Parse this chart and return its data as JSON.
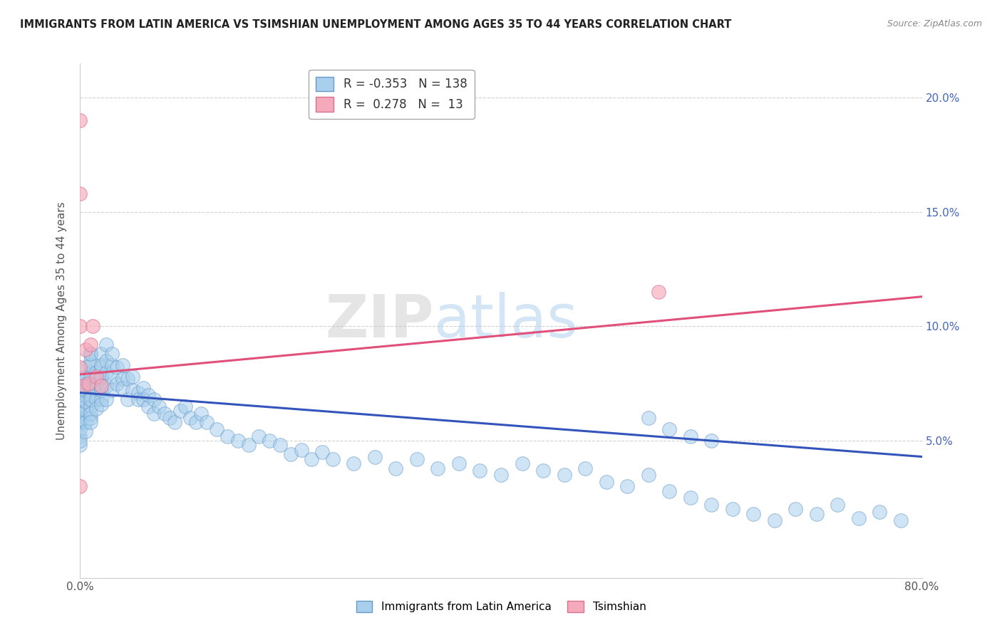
{
  "title": "IMMIGRANTS FROM LATIN AMERICA VS TSIMSHIAN UNEMPLOYMENT AMONG AGES 35 TO 44 YEARS CORRELATION CHART",
  "source": "Source: ZipAtlas.com",
  "ylabel": "Unemployment Among Ages 35 to 44 years",
  "xmin": 0.0,
  "xmax": 0.8,
  "ymin": -0.01,
  "ymax": 0.215,
  "yticks": [
    0.05,
    0.1,
    0.15,
    0.2
  ],
  "R_blue": -0.353,
  "N_blue": 138,
  "R_pink": 0.278,
  "N_pink": 13,
  "blue_color": "#A8CFEB",
  "blue_edge": "#6699CC",
  "pink_color": "#F5AABB",
  "pink_edge": "#D97090",
  "blue_line_color": "#3355BB",
  "pink_line_color": "#E0507A",
  "background_color": "#FFFFFF",
  "grid_color": "#CCCCCC",
  "legend_label_blue": "Immigrants from Latin America",
  "legend_label_pink": "Tsimshian",
  "blue_trend_x0": 0.0,
  "blue_trend_y0": 0.071,
  "blue_trend_x1": 0.8,
  "blue_trend_y1": 0.043,
  "pink_trend_x0": 0.0,
  "pink_trend_y0": 0.079,
  "pink_trend_x1": 0.8,
  "pink_trend_y1": 0.113,
  "blue_scatter_x": [
    0.0,
    0.0,
    0.0,
    0.0,
    0.0,
    0.0,
    0.0,
    0.0,
    0.0,
    0.0,
    0.0,
    0.0,
    0.0,
    0.0,
    0.0,
    0.0,
    0.0,
    0.0,
    0.0,
    0.0,
    0.005,
    0.005,
    0.005,
    0.005,
    0.005,
    0.005,
    0.005,
    0.005,
    0.005,
    0.005,
    0.01,
    0.01,
    0.01,
    0.01,
    0.01,
    0.01,
    0.01,
    0.01,
    0.01,
    0.01,
    0.01,
    0.01,
    0.01,
    0.01,
    0.01,
    0.015,
    0.015,
    0.015,
    0.015,
    0.015,
    0.02,
    0.02,
    0.02,
    0.02,
    0.02,
    0.02,
    0.02,
    0.02,
    0.02,
    0.025,
    0.025,
    0.025,
    0.025,
    0.025,
    0.03,
    0.03,
    0.03,
    0.03,
    0.035,
    0.035,
    0.04,
    0.04,
    0.04,
    0.045,
    0.045,
    0.05,
    0.05,
    0.055,
    0.055,
    0.06,
    0.06,
    0.065,
    0.065,
    0.07,
    0.07,
    0.075,
    0.08,
    0.085,
    0.09,
    0.095,
    0.1,
    0.105,
    0.11,
    0.115,
    0.12,
    0.13,
    0.14,
    0.15,
    0.16,
    0.17,
    0.18,
    0.19,
    0.2,
    0.21,
    0.22,
    0.23,
    0.24,
    0.26,
    0.28,
    0.3,
    0.32,
    0.34,
    0.36,
    0.38,
    0.4,
    0.42,
    0.44,
    0.46,
    0.48,
    0.5,
    0.52,
    0.54,
    0.56,
    0.58,
    0.6,
    0.62,
    0.64,
    0.66,
    0.68,
    0.7,
    0.72,
    0.74,
    0.76,
    0.78,
    0.54,
    0.56,
    0.58,
    0.6
  ],
  "blue_scatter_y": [
    0.065,
    0.068,
    0.072,
    0.058,
    0.052,
    0.048,
    0.062,
    0.07,
    0.066,
    0.06,
    0.055,
    0.058,
    0.062,
    0.066,
    0.07,
    0.05,
    0.075,
    0.064,
    0.059,
    0.068,
    0.063,
    0.07,
    0.075,
    0.078,
    0.082,
    0.058,
    0.054,
    0.067,
    0.072,
    0.077,
    0.072,
    0.076,
    0.08,
    0.085,
    0.088,
    0.065,
    0.06,
    0.07,
    0.074,
    0.068,
    0.078,
    0.083,
    0.088,
    0.062,
    0.058,
    0.075,
    0.08,
    0.068,
    0.064,
    0.073,
    0.078,
    0.082,
    0.088,
    0.073,
    0.068,
    0.078,
    0.083,
    0.072,
    0.066,
    0.08,
    0.085,
    0.092,
    0.074,
    0.068,
    0.083,
    0.088,
    0.078,
    0.072,
    0.082,
    0.075,
    0.077,
    0.083,
    0.073,
    0.068,
    0.077,
    0.072,
    0.078,
    0.071,
    0.068,
    0.073,
    0.068,
    0.065,
    0.07,
    0.062,
    0.068,
    0.065,
    0.062,
    0.06,
    0.058,
    0.063,
    0.065,
    0.06,
    0.058,
    0.062,
    0.058,
    0.055,
    0.052,
    0.05,
    0.048,
    0.052,
    0.05,
    0.048,
    0.044,
    0.046,
    0.042,
    0.045,
    0.042,
    0.04,
    0.043,
    0.038,
    0.042,
    0.038,
    0.04,
    0.037,
    0.035,
    0.04,
    0.037,
    0.035,
    0.038,
    0.032,
    0.03,
    0.035,
    0.028,
    0.025,
    0.022,
    0.02,
    0.018,
    0.015,
    0.02,
    0.018,
    0.022,
    0.016,
    0.019,
    0.015,
    0.06,
    0.055,
    0.052,
    0.05
  ],
  "pink_scatter_x": [
    0.0,
    0.0,
    0.0,
    0.0,
    0.0,
    0.003,
    0.005,
    0.008,
    0.01,
    0.012,
    0.015,
    0.02,
    0.55
  ],
  "pink_scatter_y": [
    0.19,
    0.158,
    0.1,
    0.082,
    0.03,
    0.074,
    0.09,
    0.075,
    0.092,
    0.1,
    0.078,
    0.074,
    0.115
  ]
}
